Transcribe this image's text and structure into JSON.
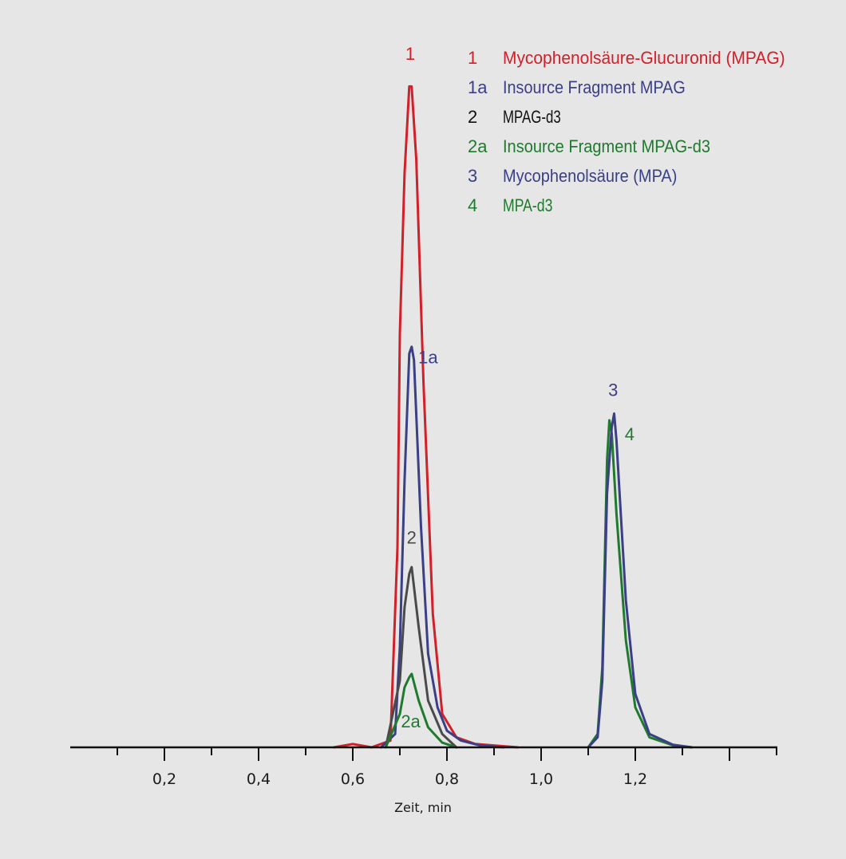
{
  "chart_data": {
    "type": "line",
    "xlabel": "Zeit, min",
    "ylabel": "",
    "xlim": [
      0.0,
      1.5
    ],
    "ylim": [
      0,
      100
    ],
    "x_ticks": [
      0.2,
      0.4,
      0.6,
      0.8,
      1.0,
      1.2
    ],
    "x_tick_labels": [
      "0,2",
      "0,4",
      "0,6",
      "0,8",
      "1,0",
      "1,2"
    ],
    "minor_tick_step": 0.1,
    "grid": false,
    "legend_position": "top-right",
    "legend": [
      {
        "num": "1",
        "text": "Mycophenolsäure-Glucuronid  (MPAG)",
        "color": "#d2202a"
      },
      {
        "num": "1a",
        "text": "Insource Fragment MPAG",
        "color": "#3a3f86"
      },
      {
        "num": "2",
        "text": "MPAG-d3",
        "color": "#111111"
      },
      {
        "num": "2a",
        "text": "Insource Fragment MPAG-d3",
        "color": "#1f7a2e"
      },
      {
        "num": "3",
        "text": "Mycophenolsäure (MPA)",
        "color": "#3a3f86"
      },
      {
        "num": "4",
        "text": "MPA-d3",
        "color": "#1f7a2e"
      }
    ],
    "series": [
      {
        "label": "1",
        "color": "#d2202a",
        "x": [
          0.56,
          0.6,
          0.64,
          0.68,
          0.695,
          0.7,
          0.71,
          0.72,
          0.725,
          0.735,
          0.75,
          0.77,
          0.79,
          0.82,
          0.86,
          0.95
        ],
        "y": [
          0,
          0.5,
          0,
          1,
          30,
          62,
          86,
          99,
          99,
          88,
          55,
          20,
          5,
          1.5,
          0.5,
          0
        ]
      },
      {
        "label": "1a",
        "color": "#3a3f86",
        "x": [
          0.66,
          0.69,
          0.7,
          0.71,
          0.72,
          0.725,
          0.73,
          0.745,
          0.76,
          0.78,
          0.8,
          0.83,
          0.87,
          0.92
        ],
        "y": [
          0,
          2,
          15,
          40,
          59,
          60,
          58,
          33,
          14,
          6,
          2.5,
          1,
          0.3,
          0
        ]
      },
      {
        "label": "2",
        "color": "#4a4a4a",
        "x": [
          0.67,
          0.7,
          0.71,
          0.72,
          0.725,
          0.74,
          0.76,
          0.79,
          0.82
        ],
        "y": [
          0,
          10,
          21,
          26,
          27,
          18,
          7,
          2,
          0
        ]
      },
      {
        "label": "2a",
        "color": "#1f7a2e",
        "x": [
          0.67,
          0.7,
          0.71,
          0.72,
          0.725,
          0.74,
          0.76,
          0.79,
          0.82
        ],
        "y": [
          0,
          5,
          9,
          10.5,
          11,
          7,
          3,
          0.7,
          0
        ]
      },
      {
        "label": "4",
        "color": "#1f7a2e",
        "x": [
          1.1,
          1.12,
          1.13,
          1.14,
          1.145,
          1.15,
          1.16,
          1.18,
          1.2,
          1.23,
          1.28,
          1.32
        ],
        "y": [
          0,
          2,
          12,
          43,
          49,
          47,
          35,
          16,
          6,
          1.5,
          0.3,
          0
        ]
      },
      {
        "label": "3",
        "color": "#3a3f86",
        "x": [
          1.1,
          1.12,
          1.13,
          1.14,
          1.15,
          1.155,
          1.16,
          1.18,
          1.2,
          1.23,
          1.28,
          1.32
        ],
        "y": [
          0,
          1.5,
          10,
          38,
          48,
          50,
          46,
          22,
          8,
          2,
          0.4,
          0
        ]
      }
    ],
    "peak_labels": [
      {
        "text": "1",
        "x": 0.722,
        "y": 103.0,
        "color": "#d2202a"
      },
      {
        "text": "1a",
        "x": 0.76,
        "y": 57.5,
        "color": "#3a3f86"
      },
      {
        "text": "2",
        "x": 0.725,
        "y": 30.5,
        "color": "#4a4a4a"
      },
      {
        "text": "2a",
        "x": 0.723,
        "y": 3.0,
        "color": "#1f7a2e"
      },
      {
        "text": "3",
        "x": 1.153,
        "y": 52.6,
        "color": "#3a3f86"
      },
      {
        "text": "4",
        "x": 1.188,
        "y": 46.0,
        "color": "#1f7a2e"
      }
    ]
  }
}
